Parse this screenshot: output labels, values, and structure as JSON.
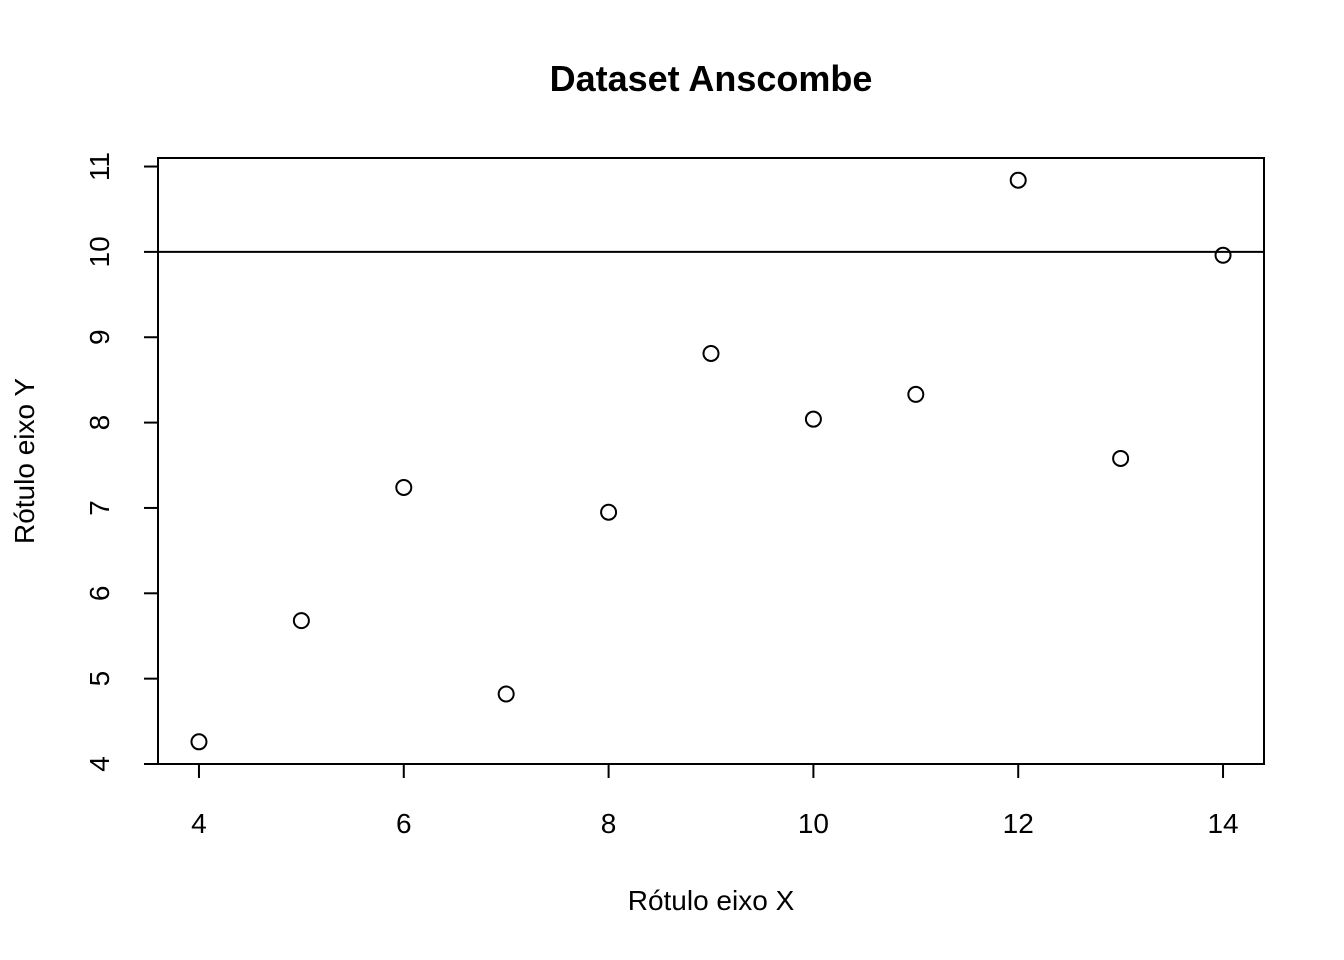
{
  "chart_data": {
    "type": "scatter",
    "title": "Dataset Anscombe",
    "xlabel": "Rótulo eixo X",
    "ylabel": "Rótulo eixo Y",
    "x": [
      10,
      8,
      13,
      9,
      11,
      14,
      6,
      4,
      12,
      7,
      5
    ],
    "y": [
      8.04,
      6.95,
      7.58,
      8.81,
      8.33,
      9.96,
      7.24,
      4.26,
      10.84,
      4.82,
      5.68
    ],
    "xlim": [
      3.6,
      14.4
    ],
    "ylim": [
      4.0,
      11.1
    ],
    "xticks": [
      4,
      6,
      8,
      10,
      12,
      14
    ],
    "yticks": [
      4,
      5,
      6,
      7,
      8,
      9,
      10,
      11
    ],
    "xtick_labels": [
      "4",
      "6",
      "8",
      "10",
      "12",
      "14"
    ],
    "ytick_labels": [
      "4",
      "5",
      "6",
      "7",
      "8",
      "9",
      "10",
      "11"
    ],
    "hline": 10,
    "marker": "open-circle",
    "grid": false,
    "legend": "none",
    "colors": {
      "points": "#000000",
      "axes": "#000000",
      "background": "#ffffff"
    }
  }
}
